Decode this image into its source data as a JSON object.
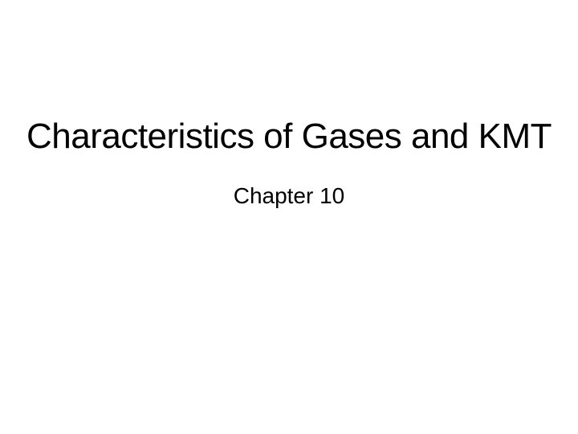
{
  "slide": {
    "title": "Characteristics of Gases and KMT",
    "subtitle": "Chapter 10",
    "background_color": "#ffffff",
    "text_color": "#000000",
    "title_fontsize": 44,
    "subtitle_fontsize": 28,
    "font_family": "Arial"
  }
}
